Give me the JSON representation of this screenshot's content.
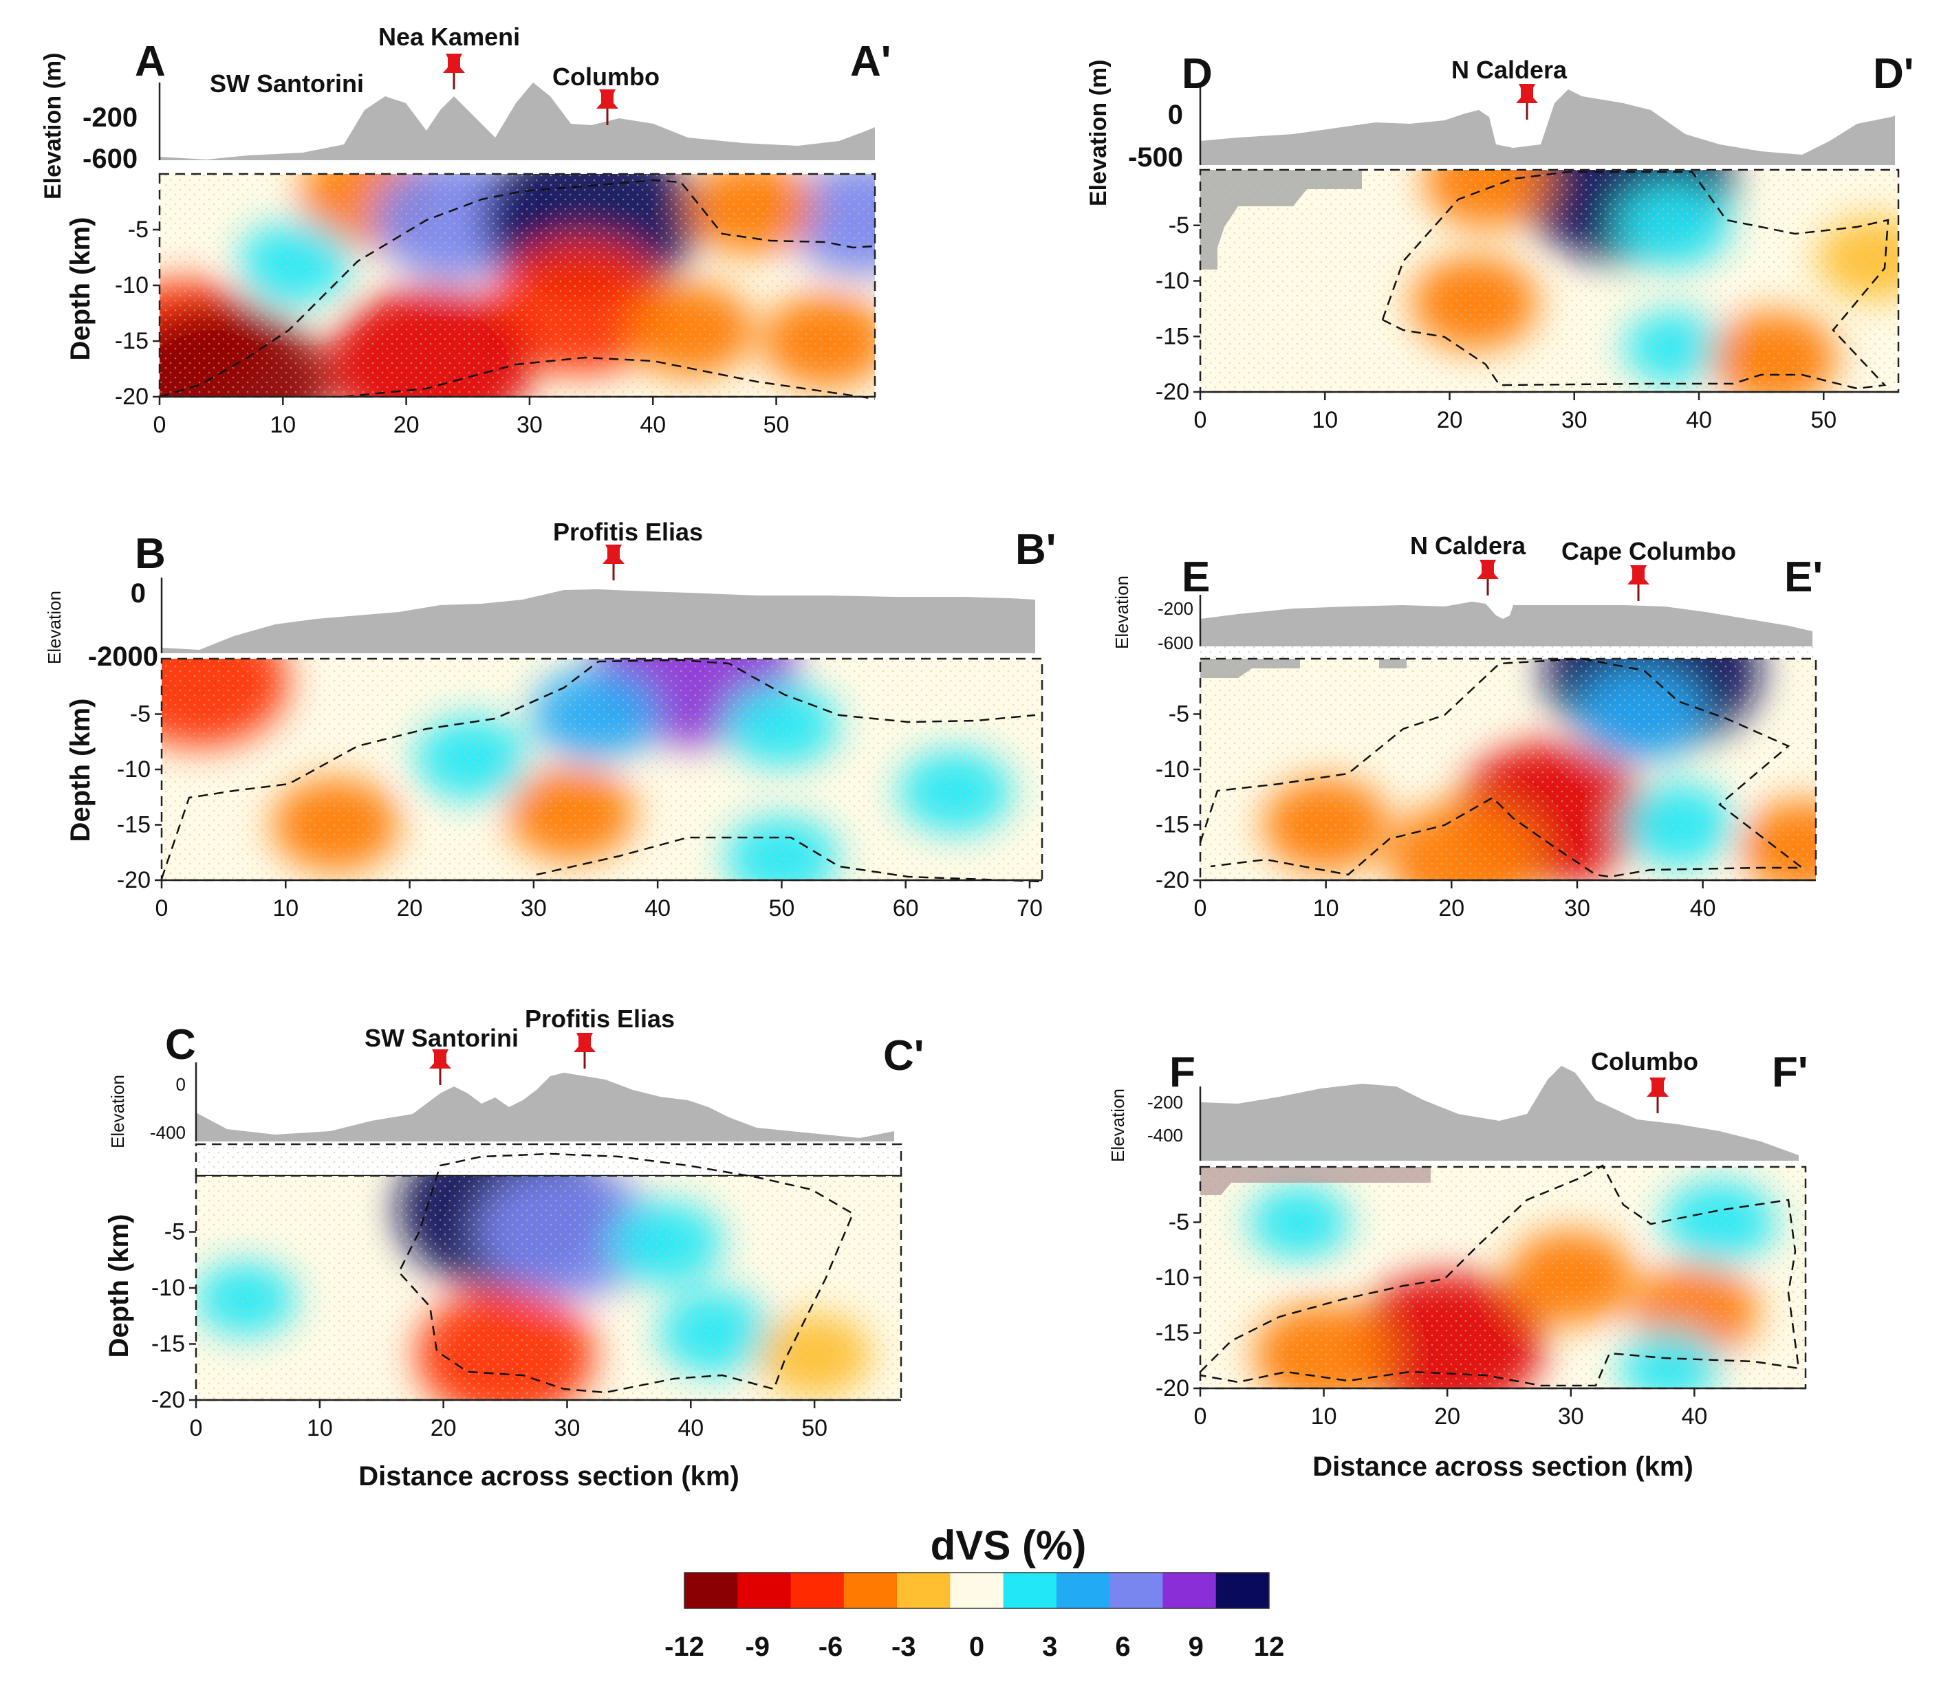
{
  "chart_data": {
    "type": "heatmap",
    "colorbar": {
      "title": "dVS (%)",
      "ticks": [
        "-12",
        "-9",
        "-6",
        "-3",
        "0",
        "3",
        "6",
        "9",
        "12"
      ],
      "colors": [
        "#8b0000",
        "#e00000",
        "#ff2a00",
        "#ff7a00",
        "#ffbf30",
        "#fffbe6",
        "#22e8f5",
        "#22aaf5",
        "#7a86f0",
        "#8a2fd8",
        "#0a0a5a"
      ]
    },
    "xlabel": "Distance across section (km)",
    "ylabel": "Depth (km)",
    "depth_range": [
      -20,
      0
    ],
    "depth_ticks": [
      "-5",
      "-10",
      "-15",
      "-20"
    ],
    "sections": [
      {
        "id": "A",
        "label_start": "A",
        "label_end": "A'",
        "x_range": [
          0,
          58
        ],
        "x_ticks": [
          "0",
          "10",
          "20",
          "30",
          "40",
          "50"
        ],
        "elevation_label": "Elevation (m)",
        "elevation_ticks": [
          "-200",
          "-600"
        ],
        "sites": [
          {
            "name": "SW Santorini",
            "marker": false
          },
          {
            "name": "Nea Kameni",
            "marker": true,
            "distance_km": 24
          },
          {
            "name": "Columbo",
            "marker": true,
            "distance_km": 36
          }
        ],
        "anomalies": [
          {
            "x": 2,
            "depth": -15,
            "dvs": -7
          },
          {
            "x": 5,
            "depth": -19,
            "dvs": -11
          },
          {
            "x": 17,
            "depth": -2,
            "dvs": -5
          },
          {
            "x": 11,
            "depth": -8,
            "dvs": 3
          },
          {
            "x": 24,
            "depth": -4,
            "dvs": 7
          },
          {
            "x": 35,
            "depth": -4,
            "dvs": 11
          },
          {
            "x": 34,
            "depth": -12,
            "dvs": -8
          },
          {
            "x": 22,
            "depth": -17,
            "dvs": -10
          },
          {
            "x": 43,
            "depth": -14,
            "dvs": -4
          },
          {
            "x": 54,
            "depth": -15,
            "dvs": -4
          },
          {
            "x": 57,
            "depth": -4,
            "dvs": 6
          },
          {
            "x": 48,
            "depth": -3,
            "dvs": -4
          }
        ]
      },
      {
        "id": "B",
        "label_start": "B",
        "label_end": "B'",
        "x_range": [
          0,
          71
        ],
        "x_ticks": [
          "0",
          "10",
          "20",
          "30",
          "40",
          "50",
          "60",
          "70"
        ],
        "elevation_label": "Elevation",
        "elevation_ticks": [
          "0",
          "-2000"
        ],
        "sites": [
          {
            "name": "Profitis Elias",
            "marker": true,
            "distance_km": 36
          }
        ],
        "anomalies": [
          {
            "x": 43,
            "depth": -1,
            "dvs": 10
          },
          {
            "x": 35,
            "depth": -5,
            "dvs": 4
          },
          {
            "x": 25,
            "depth": -9,
            "dvs": 3
          },
          {
            "x": 50,
            "depth": -6,
            "dvs": 3
          },
          {
            "x": 64,
            "depth": -12,
            "dvs": 3
          },
          {
            "x": 14,
            "depth": -15,
            "dvs": -4
          },
          {
            "x": 33,
            "depth": -14,
            "dvs": -4
          },
          {
            "x": 50,
            "depth": -18,
            "dvs": 3
          },
          {
            "x": 3,
            "depth": -2,
            "dvs": -8
          }
        ]
      },
      {
        "id": "C",
        "label_start": "C",
        "label_end": "C'",
        "x_range": [
          0,
          57
        ],
        "x_ticks": [
          "0",
          "10",
          "20",
          "30",
          "40",
          "50"
        ],
        "elevation_label": "Elevation",
        "elevation_ticks": [
          "0",
          "-400"
        ],
        "sites": [
          {
            "name": "SW Santorini",
            "marker": true,
            "distance_km": 19.5
          },
          {
            "name": "Profitis Elias",
            "marker": true,
            "distance_km": 31
          }
        ],
        "anomalies": [
          {
            "x": 25,
            "depth": -3,
            "dvs": 11
          },
          {
            "x": 30,
            "depth": -5,
            "dvs": 8
          },
          {
            "x": 38,
            "depth": -6,
            "dvs": 3
          },
          {
            "x": 42,
            "depth": -14,
            "dvs": 3
          },
          {
            "x": 25,
            "depth": -16,
            "dvs": -8
          },
          {
            "x": 50,
            "depth": -16,
            "dvs": -3
          },
          {
            "x": 4,
            "depth": -11,
            "dvs": 2
          }
        ]
      },
      {
        "id": "D",
        "label_start": "D",
        "label_end": "D'",
        "x_range": [
          0,
          56
        ],
        "x_ticks": [
          "0",
          "10",
          "20",
          "30",
          "40",
          "50"
        ],
        "elevation_label": "Elevation (m)",
        "elevation_ticks": [
          "0",
          "-500"
        ],
        "sites": [
          {
            "name": "N Caldera",
            "marker": true,
            "distance_km": 26
          }
        ],
        "anomalies": [
          {
            "x": 34,
            "depth": -1,
            "dvs": 11
          },
          {
            "x": 38,
            "depth": -5,
            "dvs": 3
          },
          {
            "x": 23,
            "depth": -1,
            "dvs": -4
          },
          {
            "x": 22,
            "depth": -12,
            "dvs": -4
          },
          {
            "x": 38,
            "depth": -16,
            "dvs": 2
          },
          {
            "x": 46,
            "depth": -17,
            "dvs": -4
          },
          {
            "x": 54,
            "depth": -8,
            "dvs": -3
          }
        ]
      },
      {
        "id": "E",
        "label_start": "E",
        "label_end": "E'",
        "x_range": [
          0,
          49
        ],
        "x_ticks": [
          "0",
          "10",
          "20",
          "30",
          "40"
        ],
        "elevation_label": "Elevation",
        "elevation_ticks": [
          "-200",
          "-600"
        ],
        "sites": [
          {
            "name": "N Caldera",
            "marker": true,
            "distance_km": 23
          },
          {
            "name": "Cape Columbo",
            "marker": true,
            "distance_km": 35
          }
        ],
        "anomalies": [
          {
            "x": 36,
            "depth": -1,
            "dvs": 11
          },
          {
            "x": 35,
            "depth": -5,
            "dvs": 4
          },
          {
            "x": 28,
            "depth": -14,
            "dvs": -9
          },
          {
            "x": 10,
            "depth": -15,
            "dvs": -4
          },
          {
            "x": 38,
            "depth": -15,
            "dvs": 3
          },
          {
            "x": 48,
            "depth": -17,
            "dvs": -4
          },
          {
            "x": 21,
            "depth": -18,
            "dvs": -6
          }
        ]
      },
      {
        "id": "F",
        "label_start": "F",
        "label_end": "F'",
        "x_range": [
          0,
          49
        ],
        "x_ticks": [
          "0",
          "10",
          "20",
          "30",
          "40"
        ],
        "elevation_label": "Elevation",
        "elevation_ticks": [
          "-200",
          "-400"
        ],
        "sites": [
          {
            "name": "Columbo",
            "marker": true,
            "distance_km": 37
          }
        ],
        "anomalies": [
          {
            "x": 20,
            "depth": -16,
            "dvs": -9
          },
          {
            "x": 10,
            "depth": -17,
            "dvs": -5
          },
          {
            "x": 8,
            "depth": -5,
            "dvs": 2
          },
          {
            "x": 30,
            "depth": -10,
            "dvs": -4
          },
          {
            "x": 42,
            "depth": -5,
            "dvs": 3
          },
          {
            "x": 40,
            "depth": -13,
            "dvs": -4
          },
          {
            "x": 38,
            "depth": -18,
            "dvs": 2
          }
        ]
      }
    ]
  }
}
